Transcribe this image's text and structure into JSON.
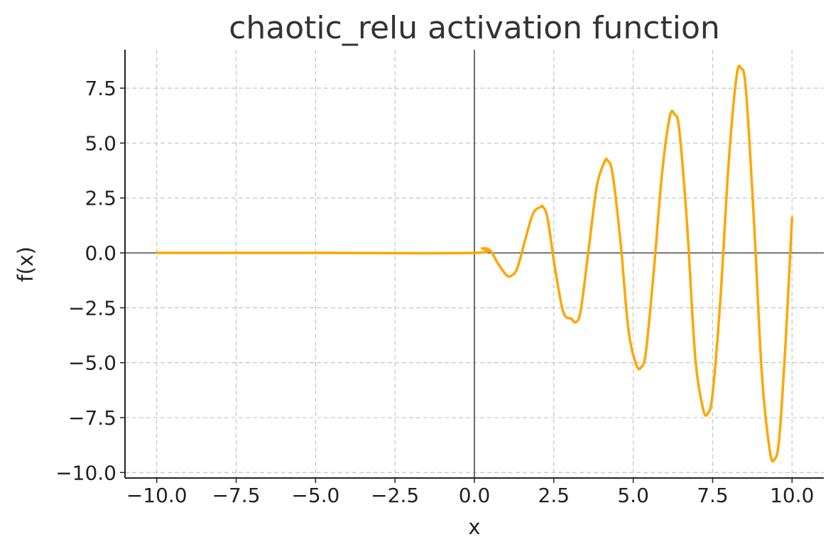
{
  "chart_data": {
    "type": "line",
    "title": "chaotic_relu activation function",
    "xlabel": "x",
    "ylabel": "f(x)",
    "xlim": [
      -11.0,
      11.0
    ],
    "ylim": [
      -10.25,
      9.25
    ],
    "x_ticks": [
      -10.0,
      -7.5,
      -5.0,
      -2.5,
      0.0,
      2.5,
      5.0,
      7.5,
      10.0
    ],
    "x_tick_labels": [
      "−10.0",
      "−7.5",
      "−5.0",
      "−2.5",
      "0.0",
      "2.5",
      "5.0",
      "7.5",
      "10.0"
    ],
    "y_ticks": [
      -10.0,
      -7.5,
      -5.0,
      -2.5,
      0.0,
      2.5,
      5.0,
      7.5
    ],
    "y_tick_labels": [
      "−10.0",
      "−7.5",
      "−5.0",
      "−2.5",
      "0.0",
      "2.5",
      "5.0",
      "7.5"
    ],
    "grid": true,
    "reference_lines": {
      "x": 0,
      "y": 0
    },
    "series": [
      {
        "color": "#FFA500",
        "x": [
          -10.0,
          -5.0,
          0.0,
          0.25,
          0.5,
          0.75,
          1.0,
          1.15,
          1.35,
          1.6,
          1.85,
          2.1,
          2.15,
          2.3,
          2.55,
          2.8,
          3.05,
          3.2,
          3.35,
          3.6,
          3.85,
          4.1,
          4.2,
          4.35,
          4.6,
          4.85,
          5.1,
          5.25,
          5.4,
          5.65,
          5.9,
          6.15,
          6.3,
          6.45,
          6.7,
          6.95,
          7.2,
          7.35,
          7.5,
          7.75,
          8.0,
          8.25,
          8.4,
          8.55,
          8.8,
          9.05,
          9.3,
          9.45,
          9.6,
          9.8,
          10.0
        ],
        "y": [
          0.0,
          0.0,
          0.0,
          0.2,
          0.1,
          -0.5,
          -1.0,
          -1.05,
          -0.7,
          0.6,
          1.8,
          2.1,
          2.1,
          1.6,
          -0.8,
          -2.7,
          -3.0,
          -3.15,
          -2.6,
          0.2,
          3.0,
          4.15,
          4.2,
          3.6,
          0.5,
          -3.5,
          -5.1,
          -5.2,
          -4.5,
          -0.8,
          3.5,
          6.2,
          6.3,
          5.6,
          1.2,
          -4.7,
          -7.1,
          -7.3,
          -6.4,
          -2.0,
          4.0,
          8.0,
          8.4,
          7.4,
          1.5,
          -5.5,
          -9.0,
          -9.4,
          -8.4,
          -4.0,
          1.6
        ]
      }
    ]
  }
}
